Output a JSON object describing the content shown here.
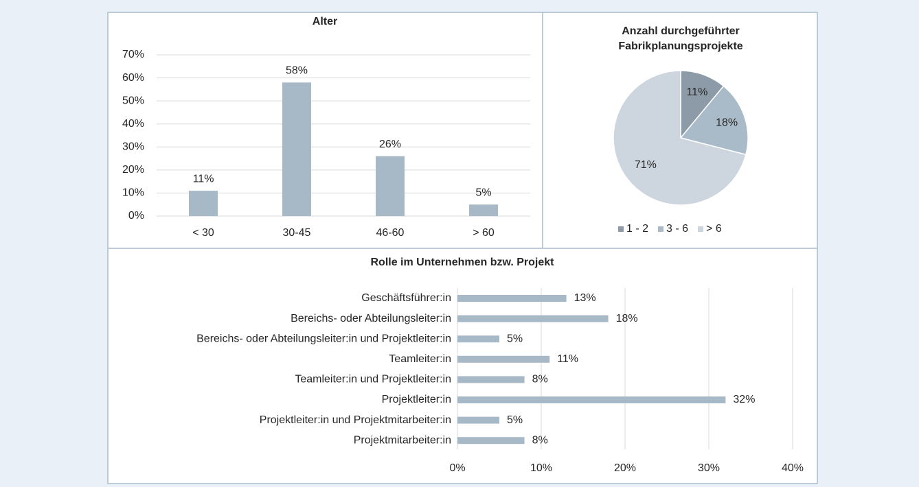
{
  "chart_data": [
    {
      "type": "bar",
      "title": "Alter",
      "categories": [
        "< 30",
        "30-45",
        "46-60",
        "> 60"
      ],
      "values": [
        11,
        58,
        26,
        5
      ],
      "value_labels": [
        "11%",
        "58%",
        "26%",
        "5%"
      ],
      "color": "#a7b9c6",
      "ylim": [
        0,
        70
      ],
      "yticks": [
        {
          "value": 0,
          "label": "0%"
        },
        {
          "value": 10,
          "label": "10%"
        },
        {
          "value": 20,
          "label": "20%"
        },
        {
          "value": 30,
          "label": "30%"
        },
        {
          "value": 40,
          "label": "40%"
        },
        {
          "value": 50,
          "label": "50%"
        },
        {
          "value": 60,
          "label": "60%"
        },
        {
          "value": 70,
          "label": "70%"
        }
      ],
      "grid": true
    },
    {
      "type": "pie",
      "title": "Anzahl durchgeführter Fabrikplanungsprojekte",
      "categories": [
        "1 - 2",
        "3 - 6",
        "> 6"
      ],
      "values": [
        11,
        18,
        71
      ],
      "value_labels": [
        "11%",
        "18%",
        "71%"
      ],
      "colors": [
        "#8c9ba7",
        "#a9bac8",
        "#cdd6de"
      ],
      "legend": "bottom"
    },
    {
      "type": "hbar",
      "title": "Rolle im Unternehmen bzw. Projekt",
      "categories": [
        "Geschäftsführer:in",
        "Bereichs- oder Abteilungsleiter:in",
        "Bereichs- oder Abteilungsleiter:in und Projektleiter:in",
        "Teamleiter:in",
        "Teamleiter:in und Projektleiter:in",
        "Projektleiter:in",
        "Projektleiter:in und Projektmitarbeiter:in",
        "Projektmitarbeiter:in"
      ],
      "values": [
        13,
        18,
        5,
        11,
        8,
        32,
        5,
        8
      ],
      "value_labels": [
        "13%",
        "18%",
        "5%",
        "11%",
        "8%",
        "32%",
        "5%",
        "8%"
      ],
      "color": "#a7b9c6",
      "xlim": [
        0,
        40
      ],
      "xticks": [
        {
          "value": 0,
          "label": "0%"
        },
        {
          "value": 10,
          "label": "10%"
        },
        {
          "value": 20,
          "label": "20%"
        },
        {
          "value": 30,
          "label": "30%"
        },
        {
          "value": 40,
          "label": "40%"
        }
      ],
      "grid": true
    }
  ]
}
